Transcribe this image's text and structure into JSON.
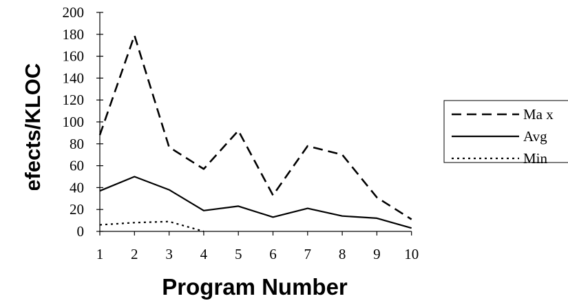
{
  "chart_data": {
    "type": "line",
    "title": "",
    "xlabel": "Program Number",
    "ylabel": "Defects/KLOC",
    "x": [
      1,
      2,
      3,
      4,
      5,
      6,
      7,
      8,
      9,
      10
    ],
    "ylim": [
      0,
      200
    ],
    "yticks": [
      0,
      20,
      40,
      60,
      80,
      100,
      120,
      140,
      160,
      180,
      200
    ],
    "grid": false,
    "legend_position": "right",
    "series": [
      {
        "name": "Ma x",
        "style": "dashed",
        "values": [
          88,
          179,
          77,
          57,
          92,
          33,
          78,
          70,
          31,
          11
        ]
      },
      {
        "name": "Avg",
        "style": "solid",
        "values": [
          37,
          50,
          38,
          19,
          23,
          13,
          21,
          14,
          12,
          3
        ]
      },
      {
        "name": "Min",
        "style": "dotted",
        "values": [
          6,
          8,
          9,
          0,
          null,
          null,
          null,
          null,
          null,
          null
        ]
      }
    ]
  }
}
